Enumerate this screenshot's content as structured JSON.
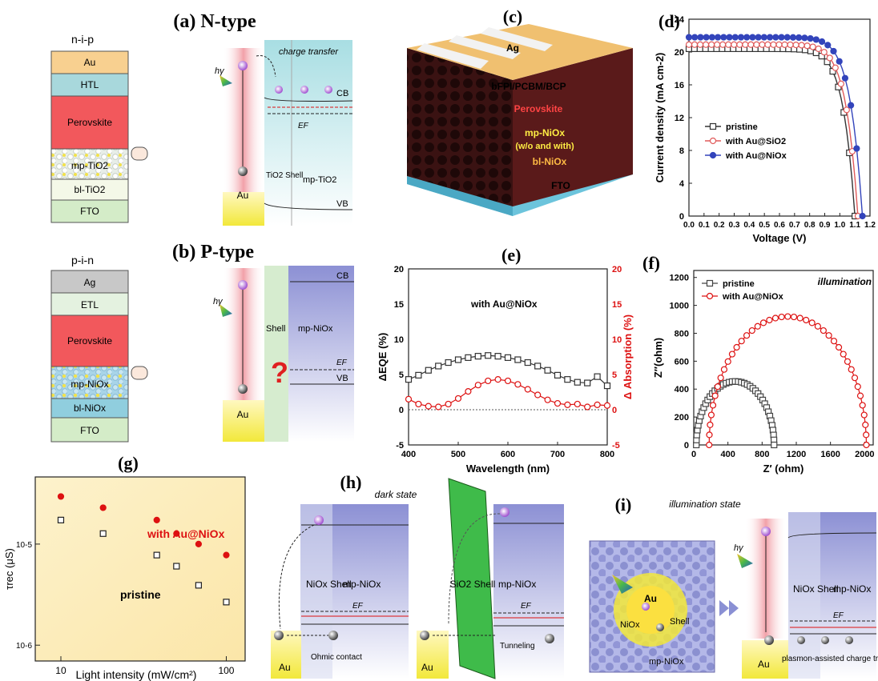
{
  "panels": {
    "a": {
      "label": "(a) N-type",
      "stack_title": "n-i-p",
      "layers": [
        "Au",
        "HTL",
        "Perovskite",
        "mp-TiO2",
        "bl-TiO2",
        "FTO"
      ],
      "band": {
        "hv": "hγ",
        "charge_transfer": "charge transfer",
        "cb": "CB",
        "vb": "VB",
        "ef": "EF",
        "au": "Au",
        "shell": "TiO2 Shell",
        "mp": "mp-TiO2"
      }
    },
    "b": {
      "label": "(b) P-type",
      "stack_title": "p-i-n",
      "layers": [
        "Ag",
        "ETL",
        "Perovskite",
        "mp-NiOx",
        "bl-NiOx",
        "FTO"
      ],
      "band": {
        "hv": "hγ",
        "cb": "CB",
        "vb": "VB",
        "ef": "EF",
        "au": "Au",
        "shell": "Shell",
        "mp": "mp-NiOx",
        "question": "?"
      }
    },
    "c": {
      "label": "(c)",
      "layers": [
        "Ag",
        "bFPI/PCBM/BCP",
        "Perovskite",
        "mp-NiOx",
        "(w/o and with)",
        "bl-NiOx",
        "FTO"
      ]
    },
    "h": {
      "label": "(h)",
      "title": "dark state",
      "left": {
        "au": "Au",
        "shell": "NiOx Shell",
        "mp": "mp-NiOx",
        "ef": "EF",
        "contact": "Ohmic contact"
      },
      "right": {
        "au": "Au",
        "shell": "SiO2 Shell",
        "mp": "mp-NiOx",
        "ef": "EF",
        "tunneling": "Tunneling"
      }
    },
    "i": {
      "label": "(i)",
      "title": "illumination state",
      "particle": {
        "au": "Au",
        "nio": "NiOx",
        "shell": "Shell",
        "mp": "mp-NiOx"
      },
      "band": {
        "hv": "hγ",
        "shell": "NiOx Shell",
        "mp": "mp-NiOx",
        "ef": "EF",
        "au": "Au",
        "caption": "plasmon-assisted charge transfer"
      }
    }
  },
  "chart_data": [
    {
      "panel": "(d)",
      "type": "line",
      "xlabel": "Voltage (V)",
      "ylabel": "Current density (mA cm-2)",
      "xlim": [
        0.0,
        1.2
      ],
      "ylim": [
        0,
        24
      ],
      "xticks": [
        "0.0",
        "0.1",
        "0.2",
        "0.3",
        "0.4",
        "0.5",
        "0.6",
        "0.7",
        "0.8",
        "0.9",
        "1.0",
        "1.1",
        "1.2"
      ],
      "yticks": [
        "0",
        "4",
        "8",
        "12",
        "16",
        "20",
        "24"
      ],
      "legend_position": "center-right",
      "series": [
        {
          "name": "pristine",
          "color": "#333333",
          "marker": "square-open",
          "jsc": 20.4,
          "voc": 1.1
        },
        {
          "name": "with Au@SiO2",
          "color": "#e05a5a",
          "marker": "circle-open",
          "jsc": 20.9,
          "voc": 1.12
        },
        {
          "name": "with Au@NiOx",
          "color": "#3344bb",
          "marker": "circle-filled",
          "jsc": 21.8,
          "voc": 1.15
        }
      ]
    },
    {
      "panel": "(e)",
      "type": "line",
      "xlabel": "Wavelength (nm)",
      "ylabel": "ΔEQE (%)",
      "ylabel_right": "Δ Absorption (%)",
      "xlim": [
        400,
        800
      ],
      "ylim": [
        -5,
        20
      ],
      "xticks": [
        "400",
        "500",
        "600",
        "700",
        "800"
      ],
      "yticks": [
        "-5",
        "0",
        "5",
        "10",
        "15",
        "20"
      ],
      "annotation": "with Au@NiOx",
      "series": [
        {
          "name": "ΔEQE",
          "color": "#333333",
          "marker": "square-open",
          "x": [
            400,
            420,
            440,
            460,
            480,
            500,
            520,
            540,
            560,
            580,
            600,
            620,
            640,
            660,
            680,
            700,
            720,
            740,
            760,
            780,
            800
          ],
          "y": [
            4.3,
            4.9,
            5.6,
            6.2,
            6.7,
            7.1,
            7.4,
            7.6,
            7.7,
            7.6,
            7.4,
            7.1,
            6.7,
            6.2,
            5.6,
            4.9,
            4.3,
            3.9,
            3.8,
            4.7,
            3.4
          ]
        },
        {
          "name": "Δ Absorption",
          "color": "#dd1111",
          "marker": "circle-open",
          "x": [
            400,
            420,
            440,
            460,
            480,
            500,
            520,
            540,
            560,
            580,
            600,
            620,
            640,
            660,
            680,
            700,
            720,
            740,
            760,
            780,
            800
          ],
          "y": [
            1.5,
            0.8,
            0.5,
            0.4,
            0.8,
            1.6,
            2.6,
            3.5,
            4.1,
            4.3,
            4.1,
            3.6,
            2.9,
            2.1,
            1.4,
            0.9,
            0.7,
            0.8,
            0.4,
            0.7,
            0.6
          ]
        }
      ]
    },
    {
      "panel": "(f)",
      "type": "scatter",
      "xlabel": "Z′ (ohm)",
      "ylabel": "Z″(ohm)",
      "xlim": [
        0,
        2100
      ],
      "ylim": [
        0,
        1250
      ],
      "xticks": [
        "0",
        "400",
        "800",
        "1200",
        "1600",
        "2000"
      ],
      "yticks": [
        "0",
        "200",
        "400",
        "600",
        "800",
        "1000",
        "1200"
      ],
      "annotation": "illumination",
      "series": [
        {
          "name": "pristine",
          "color": "#444444",
          "marker": "square-open",
          "r_start": 30,
          "r_end": 940
        },
        {
          "name": "with Au@NiOx",
          "color": "#dd1111",
          "marker": "circle-open",
          "r_start": 180,
          "r_end": 2020
        }
      ]
    },
    {
      "panel": "(g)",
      "type": "scatter",
      "xlabel": "Light intensity (mW/cm²)",
      "ylabel": "τrec (μS)",
      "xscale": "log",
      "yscale": "log",
      "xticks": [
        "10",
        "100"
      ],
      "yticks": [
        "10-6",
        "10-5"
      ],
      "series": [
        {
          "name": "with Au@NiOx",
          "color": "#dd1111",
          "marker": "circle-filled",
          "x": [
            10,
            18,
            38,
            50,
            68,
            100
          ],
          "y": [
            33,
            26,
            20,
            15,
            12,
            9.5
          ]
        },
        {
          "name": "pristine",
          "color": "#222222",
          "marker": "square-open",
          "x": [
            10,
            18,
            38,
            50,
            68,
            100
          ],
          "y": [
            20,
            15,
            9.5,
            7.5,
            5.0,
            3.5
          ]
        }
      ]
    }
  ]
}
